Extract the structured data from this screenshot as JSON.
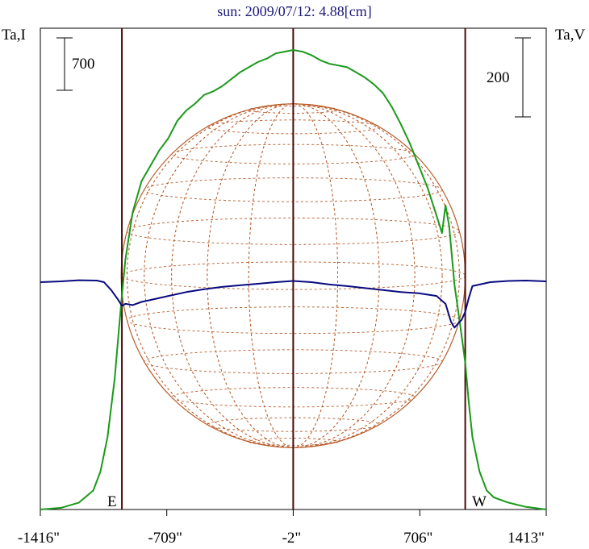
{
  "chart_data": {
    "type": "line",
    "title": "sun: 2009/07/12: 4.88[cm]",
    "ylabel_left": "Ta,I",
    "ylabel_right": "Ta,V",
    "x_ticks": [
      "-1416\"",
      "-709\"",
      "-2\"",
      "706\"",
      "1413\""
    ],
    "x_tick_values": [
      -1416,
      -709,
      -2,
      706,
      1413
    ],
    "xlim": [
      -1416,
      1413
    ],
    "scale_bar_left": "700",
    "scale_bar_right": "200",
    "limb_labels": {
      "east": "E",
      "west": "W"
    },
    "limb_x": [
      -960,
      960
    ],
    "center_x": -2,
    "colors": {
      "stokes_I": "#1a9a1a",
      "stokes_V": "#0a0a80",
      "grid": "#b85c2a",
      "verticals": "#4a0a0a"
    },
    "series": [
      {
        "key": "stokes_I",
        "x": [
          -1416,
          -1300,
          -1200,
          -1120,
          -1080,
          -1040,
          -1000,
          -980,
          -960,
          -940,
          -900,
          -850,
          -800,
          -750,
          -700,
          -650,
          -600,
          -550,
          -500,
          -450,
          -400,
          -350,
          -300,
          -250,
          -200,
          -150,
          -100,
          -50,
          -2,
          50,
          100,
          150,
          200,
          250,
          300,
          350,
          400,
          450,
          500,
          550,
          600,
          650,
          700,
          750,
          800,
          830,
          850,
          870,
          900,
          930,
          960,
          980,
          1000,
          1040,
          1080,
          1120,
          1200,
          1300,
          1413
        ],
        "y": [
          0,
          10,
          40,
          110,
          220,
          420,
          760,
          1000,
          1240,
          1450,
          1720,
          1900,
          1990,
          2080,
          2150,
          2250,
          2310,
          2350,
          2400,
          2420,
          2450,
          2490,
          2530,
          2560,
          2590,
          2610,
          2640,
          2650,
          2660,
          2650,
          2630,
          2600,
          2580,
          2570,
          2560,
          2530,
          2500,
          2460,
          2410,
          2330,
          2230,
          2120,
          1990,
          1860,
          1700,
          1600,
          1760,
          1640,
          1300,
          1080,
          850,
          620,
          420,
          220,
          110,
          70,
          40,
          15,
          0
        ]
      },
      {
        "key": "stokes_V",
        "x": [
          -1416,
          -1300,
          -1200,
          -1100,
          -1060,
          -1020,
          -980,
          -960,
          -940,
          -900,
          -850,
          -800,
          -700,
          -600,
          -500,
          -400,
          -300,
          -200,
          -100,
          -2,
          100,
          200,
          300,
          400,
          500,
          600,
          700,
          800,
          850,
          880,
          900,
          920,
          940,
          960,
          980,
          1000,
          1100,
          1200,
          1300,
          1413
        ],
        "y": [
          0,
          2,
          5,
          4,
          0,
          -20,
          -45,
          -60,
          -55,
          -58,
          -50,
          -45,
          -35,
          -25,
          -18,
          -12,
          -8,
          -4,
          0,
          3,
          0,
          -6,
          -10,
          -15,
          -20,
          -25,
          -28,
          -35,
          -55,
          -100,
          -115,
          -105,
          -95,
          -75,
          -40,
          -10,
          0,
          3,
          4,
          2
        ]
      }
    ]
  }
}
